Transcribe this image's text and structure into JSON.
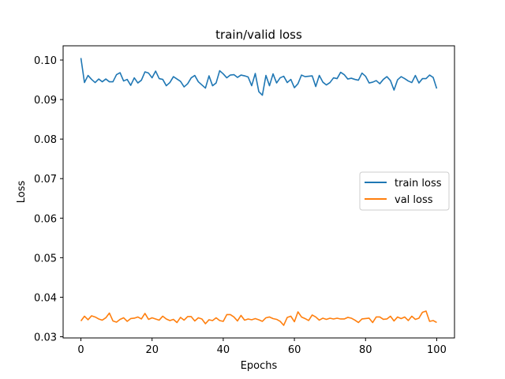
{
  "chart_data": {
    "type": "line",
    "title": "train/valid loss",
    "xlabel": "Epochs",
    "ylabel": "Loss",
    "xlim": [
      -5,
      105
    ],
    "ylim": [
      0.0297,
      0.1036
    ],
    "xticks": [
      0,
      20,
      40,
      60,
      80,
      100
    ],
    "yticks": [
      0.03,
      0.04,
      0.05,
      0.06,
      0.07,
      0.08,
      0.09,
      0.1
    ],
    "ytick_labels": [
      "0.03",
      "0.04",
      "0.05",
      "0.06",
      "0.07",
      "0.08",
      "0.09",
      "0.10"
    ],
    "xtick_labels": [
      "0",
      "20",
      "40",
      "60",
      "80",
      "100"
    ],
    "grid": false,
    "legend_position": "center-right",
    "x": [
      0,
      1,
      2,
      3,
      4,
      5,
      6,
      7,
      8,
      9,
      10,
      11,
      12,
      13,
      14,
      15,
      16,
      17,
      18,
      19,
      20,
      21,
      22,
      23,
      24,
      25,
      26,
      27,
      28,
      29,
      30,
      31,
      32,
      33,
      34,
      35,
      36,
      37,
      38,
      39,
      40,
      41,
      42,
      43,
      44,
      45,
      46,
      47,
      48,
      49,
      50,
      51,
      52,
      53,
      54,
      55,
      56,
      57,
      58,
      59,
      60,
      61,
      62,
      63,
      64,
      65,
      66,
      67,
      68,
      69,
      70,
      71,
      72,
      73,
      74,
      75,
      76,
      77,
      78,
      79,
      80,
      81,
      82,
      83,
      84,
      85,
      86,
      87,
      88,
      89,
      90,
      91,
      92,
      93,
      94,
      95,
      96,
      97,
      98,
      99,
      100
    ],
    "series": [
      {
        "name": "train loss",
        "color": "#1f77b4",
        "values": [
          0.1005,
          0.0943,
          0.0961,
          0.0951,
          0.0943,
          0.0952,
          0.0945,
          0.0952,
          0.0945,
          0.0945,
          0.0963,
          0.0968,
          0.0947,
          0.0951,
          0.0936,
          0.0955,
          0.0942,
          0.0949,
          0.097,
          0.0967,
          0.0955,
          0.0972,
          0.0953,
          0.0951,
          0.0935,
          0.0943,
          0.0958,
          0.0952,
          0.0946,
          0.0932,
          0.094,
          0.0955,
          0.0961,
          0.0945,
          0.0937,
          0.0929,
          0.096,
          0.0935,
          0.0942,
          0.0973,
          0.0965,
          0.0955,
          0.0962,
          0.0963,
          0.0956,
          0.0962,
          0.096,
          0.0957,
          0.0935,
          0.0966,
          0.092,
          0.0911,
          0.0961,
          0.0935,
          0.0965,
          0.0942,
          0.0955,
          0.0959,
          0.0943,
          0.0951,
          0.093,
          0.094,
          0.0962,
          0.0958,
          0.0959,
          0.096,
          0.0933,
          0.0961,
          0.0944,
          0.0937,
          0.0943,
          0.0955,
          0.0953,
          0.0969,
          0.0963,
          0.0952,
          0.0954,
          0.0951,
          0.0949,
          0.0967,
          0.0959,
          0.0942,
          0.0944,
          0.0948,
          0.094,
          0.0951,
          0.0958,
          0.0948,
          0.0924,
          0.095,
          0.0958,
          0.0953,
          0.0947,
          0.0943,
          0.0961,
          0.0942,
          0.0953,
          0.0953,
          0.0962,
          0.0956,
          0.0928
        ]
      },
      {
        "name": "val loss",
        "color": "#ff7f0e",
        "values": [
          0.034,
          0.0352,
          0.0343,
          0.0353,
          0.035,
          0.0345,
          0.0342,
          0.0348,
          0.036,
          0.034,
          0.0337,
          0.0344,
          0.0348,
          0.0339,
          0.0346,
          0.0347,
          0.035,
          0.0345,
          0.0359,
          0.0344,
          0.0348,
          0.0345,
          0.0342,
          0.0352,
          0.0345,
          0.0341,
          0.0344,
          0.0336,
          0.0349,
          0.0342,
          0.0351,
          0.0351,
          0.034,
          0.0348,
          0.0345,
          0.0333,
          0.0343,
          0.0341,
          0.0348,
          0.0341,
          0.0339,
          0.0356,
          0.0356,
          0.035,
          0.034,
          0.0354,
          0.0342,
          0.0345,
          0.0343,
          0.0346,
          0.0343,
          0.0339,
          0.0348,
          0.035,
          0.0346,
          0.0344,
          0.0339,
          0.0329,
          0.0349,
          0.0352,
          0.0338,
          0.0363,
          0.035,
          0.0346,
          0.0341,
          0.0355,
          0.035,
          0.0342,
          0.0347,
          0.0344,
          0.0347,
          0.0345,
          0.0347,
          0.0345,
          0.0345,
          0.0349,
          0.0347,
          0.0342,
          0.0336,
          0.0345,
          0.0346,
          0.0347,
          0.0336,
          0.035,
          0.035,
          0.0344,
          0.0345,
          0.0352,
          0.034,
          0.035,
          0.0346,
          0.035,
          0.0341,
          0.0352,
          0.0344,
          0.0347,
          0.0362,
          0.0365,
          0.0339,
          0.0341,
          0.0336
        ]
      }
    ]
  }
}
